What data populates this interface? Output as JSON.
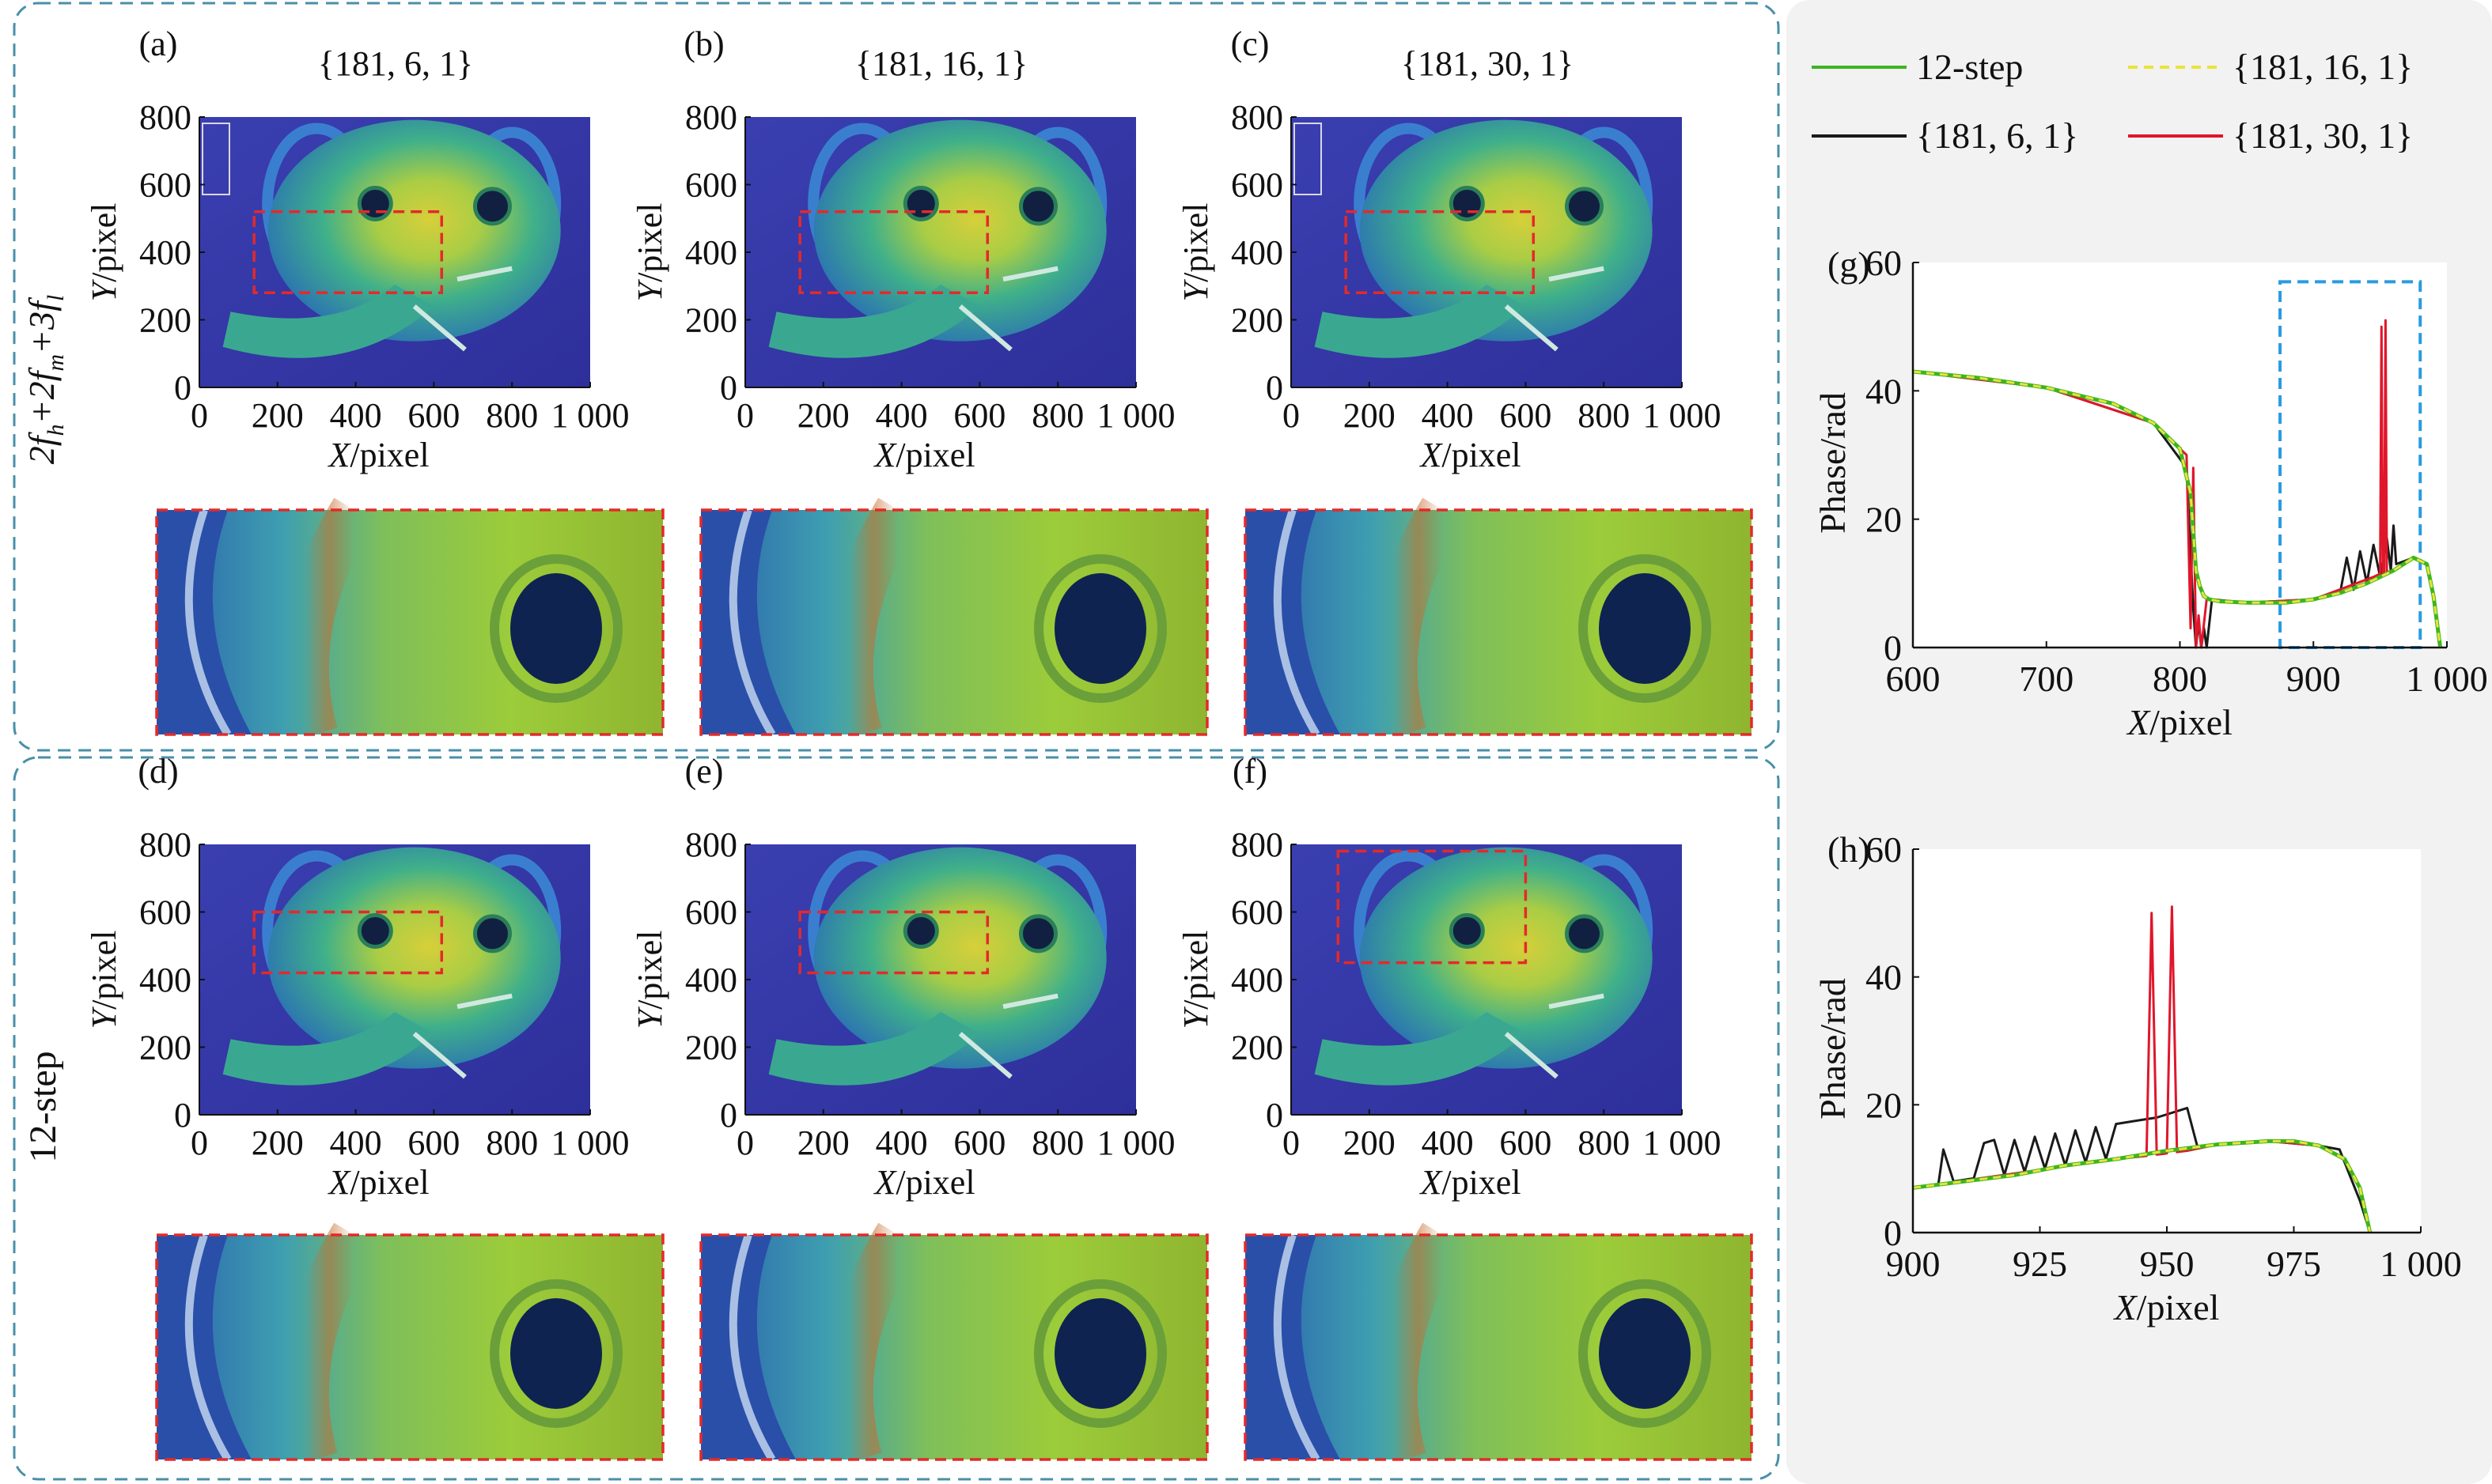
{
  "colors": {
    "green": "#3db51f",
    "yellow": "#e8e43a",
    "black": "#1a1a1a",
    "red": "#e0162b",
    "box_red": "#e32a2a",
    "box_blue": "#2a9be0",
    "panel_border": "#4a8fa8",
    "right_bg": "#f2f2f2"
  },
  "row_labels": {
    "top_prefix": "2f",
    "top_sub1": "h",
    "top_mid1": "+2f",
    "top_sub2": "m",
    "top_mid2": "+3f",
    "top_sub3": "l",
    "bottom": "12-step"
  },
  "axis_text": {
    "x_var": "X",
    "y_var": "Y",
    "unit": "/pixel",
    "phase": "Phase/rad"
  },
  "heatmaps": [
    {
      "letter": "(a)",
      "title": "{181, 6, 1}"
    },
    {
      "letter": "(b)",
      "title": "{181, 16, 1}"
    },
    {
      "letter": "(c)",
      "title": "{181, 30, 1}"
    },
    {
      "letter": "(d)",
      "title": ""
    },
    {
      "letter": "(e)",
      "title": ""
    },
    {
      "letter": "(f)",
      "title": ""
    }
  ],
  "heatmap_axes": {
    "xticks": [
      "0",
      "200",
      "400",
      "600",
      "800",
      "1 000"
    ],
    "yticks": [
      "0",
      "200",
      "400",
      "600",
      "800"
    ],
    "xlim": [
      0,
      1000
    ],
    "ylim": [
      0,
      800
    ]
  },
  "legend": [
    {
      "label": "12-step",
      "color": "#3db51f",
      "dash": false
    },
    {
      "label": "{181, 16, 1}",
      "color": "#e8e43a",
      "dash": true
    },
    {
      "label": "{181, 6, 1}",
      "color": "#1a1a1a",
      "dash": false
    },
    {
      "label": "{181, 30, 1}",
      "color": "#e0162b",
      "dash": false
    }
  ],
  "chart_data": [
    {
      "panel": "(g)",
      "type": "line",
      "xlabel": "X/pixel",
      "ylabel": "Phase/rad",
      "xlim": [
        600,
        1000
      ],
      "ylim": [
        0,
        60
      ],
      "xticks": [
        "600",
        "700",
        "800",
        "900",
        "1 000"
      ],
      "yticks": [
        "0",
        "20",
        "40",
        "60"
      ],
      "highlight_box_x": [
        875,
        980
      ],
      "series": [
        {
          "name": "12-step",
          "x": [
            600,
            650,
            700,
            750,
            780,
            800,
            808,
            812,
            815,
            818,
            822,
            830,
            850,
            880,
            900,
            920,
            940,
            960,
            975,
            985,
            990,
            995
          ],
          "y": [
            43,
            42,
            40.5,
            38,
            35,
            31,
            24,
            12,
            9.5,
            8,
            7.5,
            7.2,
            7,
            7,
            7.5,
            8.5,
            10,
            12,
            14,
            13,
            8,
            0
          ]
        },
        {
          "name": "{181, 16, 1}",
          "x": [
            600,
            650,
            700,
            750,
            780,
            800,
            808,
            812,
            815,
            818,
            822,
            830,
            850,
            880,
            900,
            920,
            940,
            960,
            975,
            985,
            990,
            995
          ],
          "y": [
            43,
            42,
            40.5,
            38,
            35,
            31,
            24,
            12,
            9.5,
            8,
            7.5,
            7.2,
            7,
            7,
            7.5,
            8.5,
            10,
            12,
            14,
            13,
            8,
            0
          ]
        },
        {
          "name": "{181, 6, 1}",
          "x": [
            600,
            700,
            780,
            805,
            810,
            812,
            814,
            816,
            818,
            820,
            824,
            850,
            900,
            920,
            925,
            930,
            935,
            940,
            945,
            950,
            955,
            958,
            960,
            962,
            975,
            985,
            990,
            995
          ],
          "y": [
            43,
            40.5,
            35,
            28,
            6,
            0,
            4,
            0,
            3,
            0,
            7.5,
            7,
            7.5,
            8.5,
            14,
            9,
            15,
            10,
            16,
            11,
            17,
            12,
            19,
            13,
            14,
            13,
            8,
            0
          ]
        },
        {
          "name": "{181, 30, 1}",
          "x": [
            600,
            700,
            780,
            805,
            808,
            810,
            812,
            814,
            816,
            820,
            850,
            900,
            945,
            950,
            951,
            952,
            953,
            954,
            955,
            956,
            960,
            975,
            985,
            990,
            995
          ],
          "y": [
            43,
            40.5,
            35,
            30,
            3,
            28,
            0,
            5,
            0,
            7.5,
            7,
            7.5,
            11,
            11.5,
            50,
            11.5,
            11.5,
            51,
            11.5,
            11.8,
            12,
            14,
            13,
            8,
            0
          ]
        }
      ]
    },
    {
      "panel": "(h)",
      "type": "line",
      "xlabel": "X/pixel",
      "ylabel": "Phase/rad",
      "xlim": [
        900,
        1000
      ],
      "ylim": [
        0,
        60
      ],
      "xticks": [
        "900",
        "925",
        "950",
        "975",
        "1 000"
      ],
      "yticks": [
        "0",
        "20",
        "40",
        "60"
      ],
      "series": [
        {
          "name": "12-step",
          "x": [
            900,
            910,
            920,
            930,
            940,
            950,
            960,
            970,
            975,
            980,
            985,
            988,
            990
          ],
          "y": [
            7,
            8,
            9,
            10.5,
            11.5,
            12.8,
            13.8,
            14.3,
            14.3,
            13.6,
            11.5,
            7,
            0
          ]
        },
        {
          "name": "{181, 16, 1}",
          "x": [
            900,
            910,
            920,
            930,
            940,
            950,
            960,
            970,
            975,
            980,
            985,
            988,
            990
          ],
          "y": [
            7,
            8,
            9,
            10.5,
            11.5,
            12.8,
            13.8,
            14.3,
            14.3,
            13.6,
            11.5,
            7,
            0
          ]
        },
        {
          "name": "{181, 6, 1}",
          "x": [
            900,
            905,
            906,
            908,
            912,
            914,
            916,
            918,
            920,
            922,
            924,
            926,
            928,
            930,
            932,
            934,
            936,
            938,
            940,
            944,
            948,
            950,
            954,
            956,
            960,
            970,
            980,
            984,
            986,
            988,
            990
          ],
          "y": [
            7,
            7.5,
            13,
            8,
            8.5,
            14,
            14.5,
            9,
            14.5,
            9.5,
            15,
            10,
            15.5,
            10.5,
            16,
            11,
            16.5,
            11.5,
            17,
            17.5,
            18,
            18.5,
            19.5,
            13.5,
            13.8,
            14.3,
            13.6,
            13,
            9,
            5,
            0
          ]
        },
        {
          "name": "{181, 30, 1}",
          "x": [
            900,
            940,
            946,
            947,
            948,
            949,
            950,
            951,
            952,
            953,
            954,
            960,
            970,
            980,
            985,
            988,
            990
          ],
          "y": [
            7,
            11.5,
            12,
            50,
            12.2,
            12.3,
            12.4,
            51,
            12.6,
            12.7,
            12.8,
            13.8,
            14.3,
            13.6,
            11.5,
            7,
            0
          ]
        }
      ]
    }
  ]
}
